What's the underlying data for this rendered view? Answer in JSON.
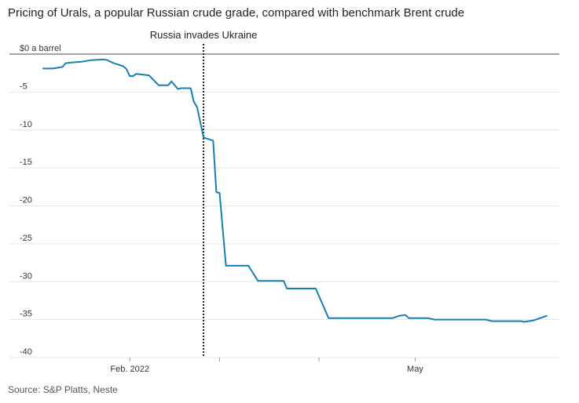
{
  "title": "Pricing of Urals, a popular Russian crude grade, compared with benchmark Brent crude",
  "source": "Source: S&P Platts, Neste",
  "colors": {
    "line": "#1a7fae",
    "zero_line": "#888888",
    "grid": "#e6e6e6",
    "event_line": "#222222"
  },
  "chart_data": {
    "type": "line",
    "title": "Pricing of Urals, a popular Russian crude grade, compared with benchmark Brent crude",
    "xlabel": "",
    "ylabel": "$0 a barrel",
    "x_axis_kind": "date",
    "xlim": [
      "2022-01-05",
      "2022-06-14"
    ],
    "ylim": [
      -40,
      0
    ],
    "yticks": [
      0,
      -5,
      -10,
      -15,
      -20,
      -25,
      -30,
      -35,
      -40
    ],
    "ytick_labels": [
      "$0 a barrel",
      "-5",
      "-10",
      "-15",
      "-20",
      "-25",
      "-30",
      "-35",
      "-40"
    ],
    "xticks": [
      {
        "date": "2022-02-01",
        "label": "Feb. 2022"
      },
      {
        "date": "2022-03-01",
        "label": ""
      },
      {
        "date": "2022-04-01",
        "label": ""
      },
      {
        "date": "2022-05-01",
        "label": "May"
      }
    ],
    "grid": true,
    "annotations": [
      {
        "date": "2022-02-24",
        "label": "Russia invades Ukraine"
      }
    ],
    "series": [
      {
        "points": [
          [
            "2022-01-05",
            -1.9
          ],
          [
            "2022-01-08",
            -1.9
          ],
          [
            "2022-01-11",
            -1.7
          ],
          [
            "2022-01-12",
            -1.2
          ],
          [
            "2022-01-14",
            -1.1
          ],
          [
            "2022-01-17",
            -1.0
          ],
          [
            "2022-01-20",
            -0.8
          ],
          [
            "2022-01-24",
            -0.7
          ],
          [
            "2022-01-25",
            -0.8
          ],
          [
            "2022-01-27",
            -1.2
          ],
          [
            "2022-01-30",
            -1.6
          ],
          [
            "2022-01-31",
            -2.0
          ],
          [
            "2022-02-01",
            -2.9
          ],
          [
            "2022-02-02",
            -2.9
          ],
          [
            "2022-02-03",
            -2.6
          ],
          [
            "2022-02-07",
            -2.8
          ],
          [
            "2022-02-10",
            -4.1
          ],
          [
            "2022-02-13",
            -4.1
          ],
          [
            "2022-02-14",
            -3.6
          ],
          [
            "2022-02-16",
            -4.6
          ],
          [
            "2022-02-17",
            -4.5
          ],
          [
            "2022-02-20",
            -4.5
          ],
          [
            "2022-02-21",
            -6.3
          ],
          [
            "2022-02-22",
            -7.0
          ],
          [
            "2022-02-24",
            -11.0
          ],
          [
            "2022-02-27",
            -11.4
          ],
          [
            "2022-02-28",
            -18.2
          ],
          [
            "2022-03-01",
            -18.3
          ],
          [
            "2022-03-03",
            -27.9
          ],
          [
            "2022-03-10",
            -27.9
          ],
          [
            "2022-03-13",
            -29.9
          ],
          [
            "2022-03-21",
            -29.9
          ],
          [
            "2022-03-22",
            -30.9
          ],
          [
            "2022-03-31",
            -30.9
          ],
          [
            "2022-04-04",
            -34.8
          ],
          [
            "2022-04-24",
            -34.8
          ],
          [
            "2022-04-26",
            -34.5
          ],
          [
            "2022-04-28",
            -34.4
          ],
          [
            "2022-04-29",
            -34.8
          ],
          [
            "2022-05-05",
            -34.8
          ],
          [
            "2022-05-07",
            -35.0
          ],
          [
            "2022-05-23",
            -35.0
          ],
          [
            "2022-05-25",
            -35.2
          ],
          [
            "2022-06-03",
            -35.2
          ],
          [
            "2022-06-04",
            -35.3
          ],
          [
            "2022-06-07",
            -35.1
          ],
          [
            "2022-06-11",
            -34.5
          ]
        ]
      }
    ]
  }
}
